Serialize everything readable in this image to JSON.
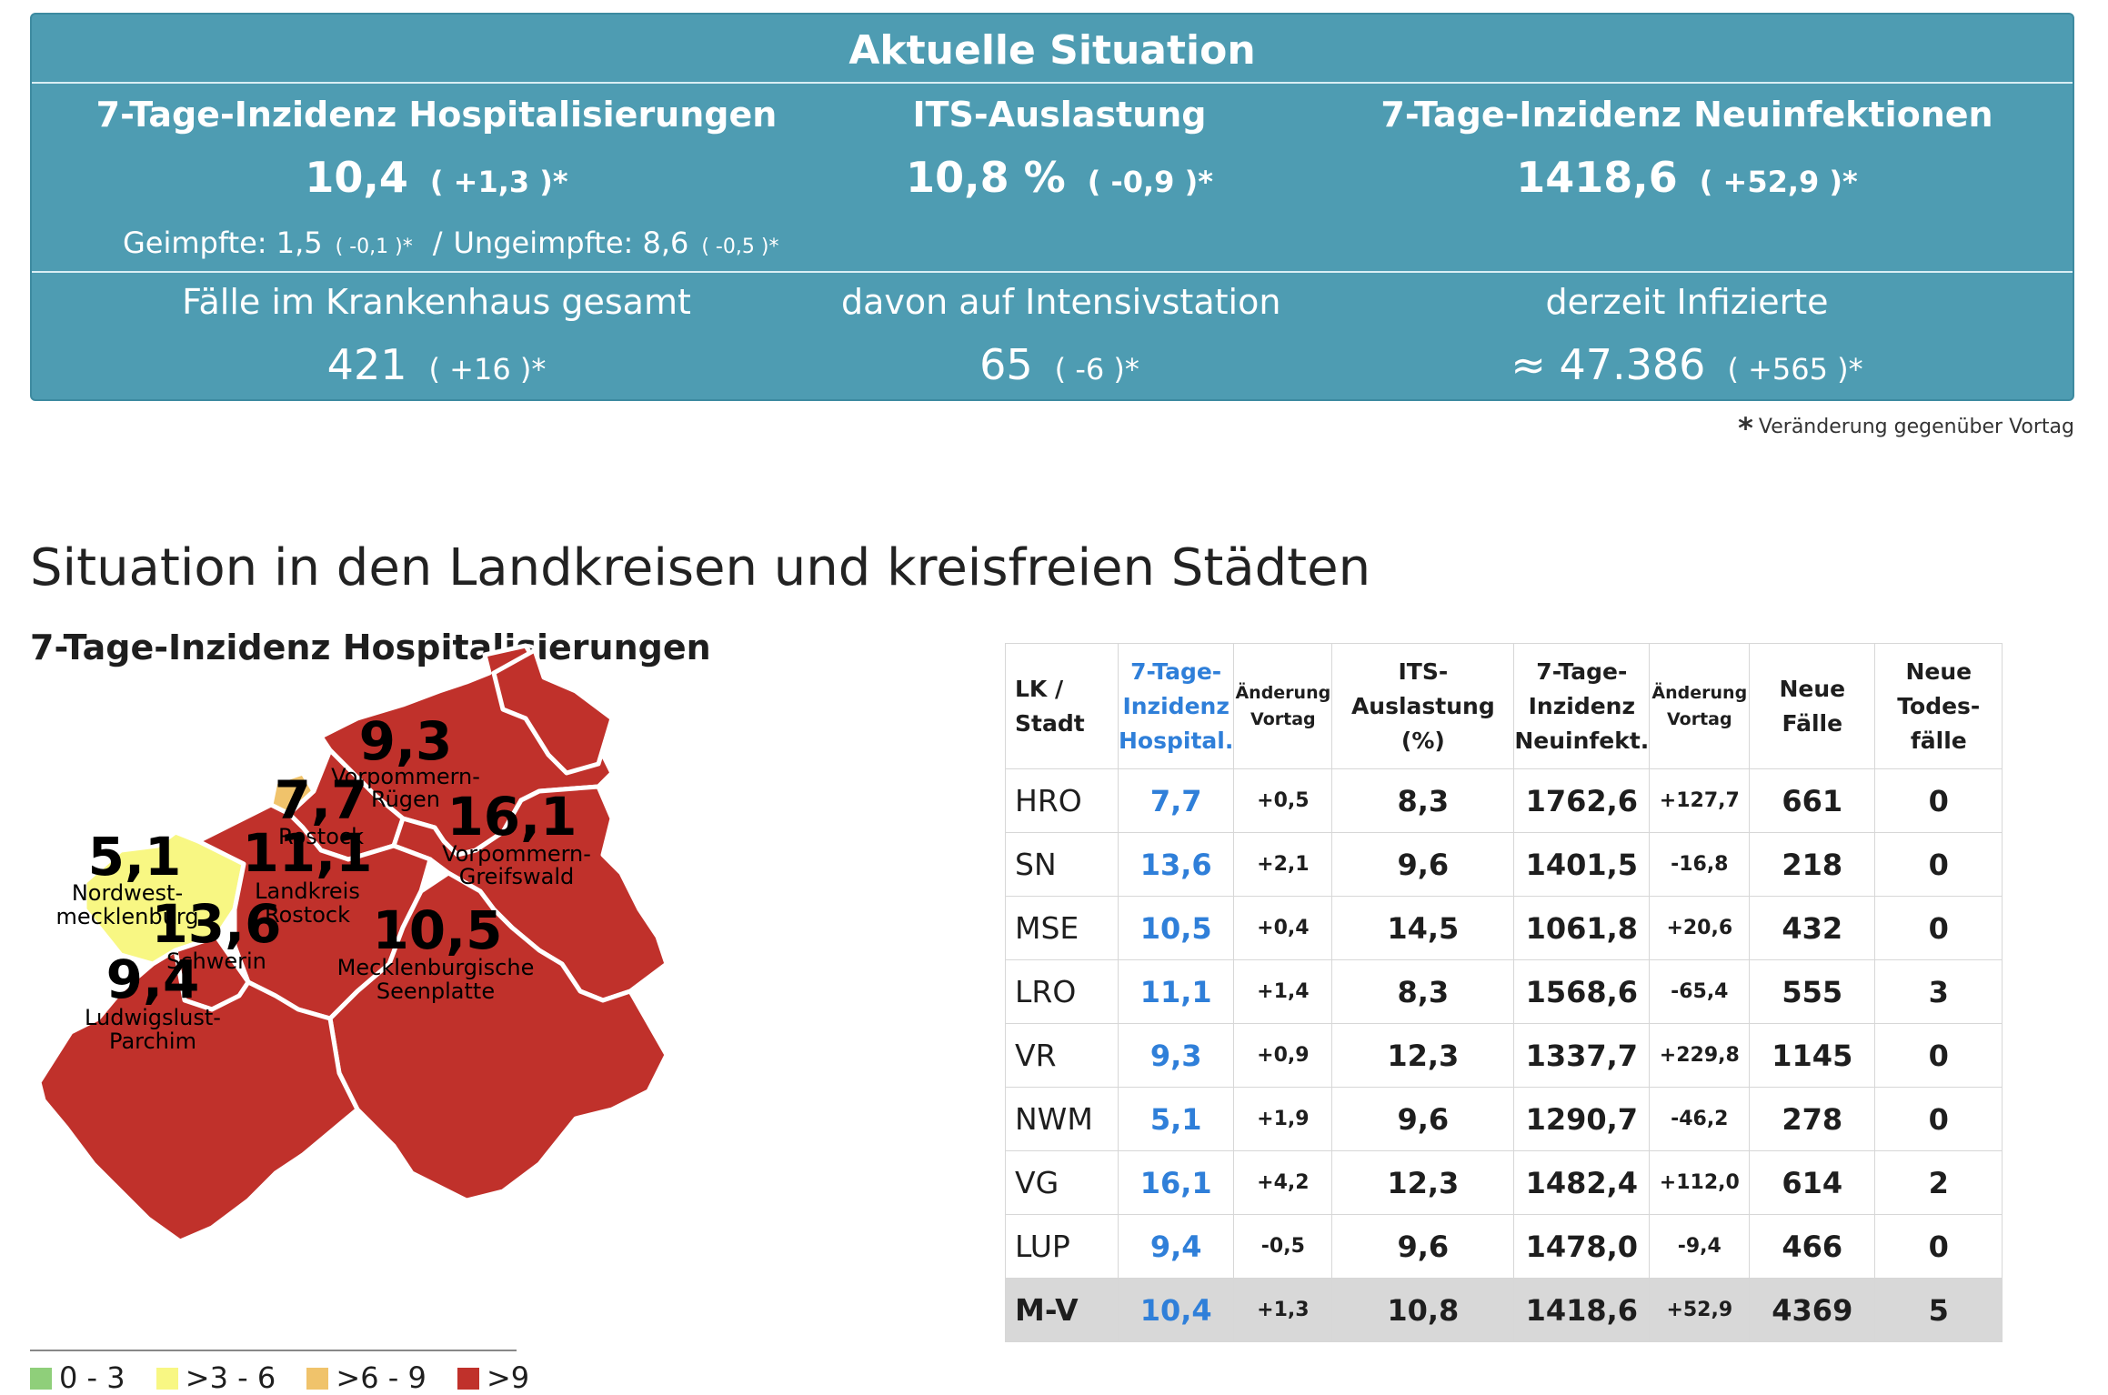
{
  "panel": {
    "title": "Aktuelle Situation",
    "hosp": {
      "label": "7-Tage-Inzidenz Hospitalisierungen",
      "value": "10,4",
      "change": "( +1,3 )*"
    },
    "its": {
      "label": "ITS-Auslastung",
      "value": "10,8 %",
      "change": "( -0,9 )*"
    },
    "neu": {
      "label": "7-Tage-Inzidenz Neuinfektionen",
      "value": "1418,6",
      "change": "( +52,9 )*"
    },
    "geimpfte": {
      "label": "Geimpfte: 1,5",
      "change": "( -0,1 )*",
      "sep": "/",
      "label2": "Ungeimpfte: 8,6",
      "change2": "( -0,5 )*"
    },
    "krankenhaus": {
      "label": "Fälle im Krankenhaus gesamt",
      "value": "421",
      "change": "( +16 )*"
    },
    "intensiv": {
      "label": "davon auf Intensivstation",
      "value": "65",
      "change": "( -6 )*"
    },
    "infizierte": {
      "label": "derzeit Infizierte",
      "value": "≈ 47.386",
      "change": "( +565 )*"
    }
  },
  "footnote": {
    "star": "*",
    "text": "Veränderung gegenüber Vortag"
  },
  "section_title": "Situation in den Landkreisen und kreisfreien Städten",
  "map": {
    "title": "7-Tage-Inzidenz Hospitalisierungen",
    "regions": [
      {
        "value": "9,3",
        "label1": "Vorpommern-",
        "label2": "Rügen"
      },
      {
        "value": "7,7",
        "label1": "Rostock",
        "label2": ""
      },
      {
        "value": "16,1",
        "label1": "Vorpommern-",
        "label2": "Greifswald"
      },
      {
        "value": "5,1",
        "label1": "Nordwest-",
        "label2": "mecklenburg"
      },
      {
        "value": "11,1",
        "label1": "Landkreis",
        "label2": "Rostock"
      },
      {
        "value": "13,6",
        "label1": "Schwerin",
        "label2": ""
      },
      {
        "value": "10,5",
        "label1": "Mecklenburgische",
        "label2": "Seenplatte"
      },
      {
        "value": "9,4",
        "label1": "Ludwigslust-",
        "label2": "Parchim"
      }
    ],
    "colors": {
      "red": "#c0312b",
      "yellow": "#f8f783",
      "orange": "#f0c36b",
      "green": "#8fcf7a"
    },
    "legend": [
      "0 - 3",
      ">3 - 6",
      ">6 - 9",
      ">9"
    ]
  },
  "table": {
    "headers": {
      "lk": [
        "LK /",
        "Stadt"
      ],
      "hosp": [
        "7-Tage-",
        "Inzidenz",
        "Hospital."
      ],
      "aend1": [
        "Änderung",
        "Vortag"
      ],
      "its": [
        "ITS-",
        "Auslastung",
        "(%)"
      ],
      "neu": [
        "7-Tage-",
        "Inzidenz",
        "Neuinfekt."
      ],
      "aend2": [
        "Änderung",
        "Vortag"
      ],
      "faelle": [
        "Neue",
        "Fälle"
      ],
      "tod": [
        "Neue",
        "Todes-",
        "fälle"
      ]
    },
    "rows": [
      {
        "lk": "HRO",
        "hosp": "7,7",
        "aend1": "+0,5",
        "its": "8,3",
        "neu": "1762,6",
        "aend2": "+127,7",
        "faelle": "661",
        "tod": "0"
      },
      {
        "lk": "SN",
        "hosp": "13,6",
        "aend1": "+2,1",
        "its": "9,6",
        "neu": "1401,5",
        "aend2": "-16,8",
        "faelle": "218",
        "tod": "0"
      },
      {
        "lk": "MSE",
        "hosp": "10,5",
        "aend1": "+0,4",
        "its": "14,5",
        "neu": "1061,8",
        "aend2": "+20,6",
        "faelle": "432",
        "tod": "0"
      },
      {
        "lk": "LRO",
        "hosp": "11,1",
        "aend1": "+1,4",
        "its": "8,3",
        "neu": "1568,6",
        "aend2": "-65,4",
        "faelle": "555",
        "tod": "3"
      },
      {
        "lk": "VR",
        "hosp": "9,3",
        "aend1": "+0,9",
        "its": "12,3",
        "neu": "1337,7",
        "aend2": "+229,8",
        "faelle": "1145",
        "tod": "0"
      },
      {
        "lk": "NWM",
        "hosp": "5,1",
        "aend1": "+1,9",
        "its": "9,6",
        "neu": "1290,7",
        "aend2": "-46,2",
        "faelle": "278",
        "tod": "0"
      },
      {
        "lk": "VG",
        "hosp": "16,1",
        "aend1": "+4,2",
        "its": "12,3",
        "neu": "1482,4",
        "aend2": "+112,0",
        "faelle": "614",
        "tod": "2"
      },
      {
        "lk": "LUP",
        "hosp": "9,4",
        "aend1": "-0,5",
        "its": "9,6",
        "neu": "1478,0",
        "aend2": "-9,4",
        "faelle": "466",
        "tod": "0"
      },
      {
        "lk": "M-V",
        "hosp": "10,4",
        "aend1": "+1,3",
        "its": "10,8",
        "neu": "1418,6",
        "aend2": "+52,9",
        "faelle": "4369",
        "tod": "5"
      }
    ]
  }
}
